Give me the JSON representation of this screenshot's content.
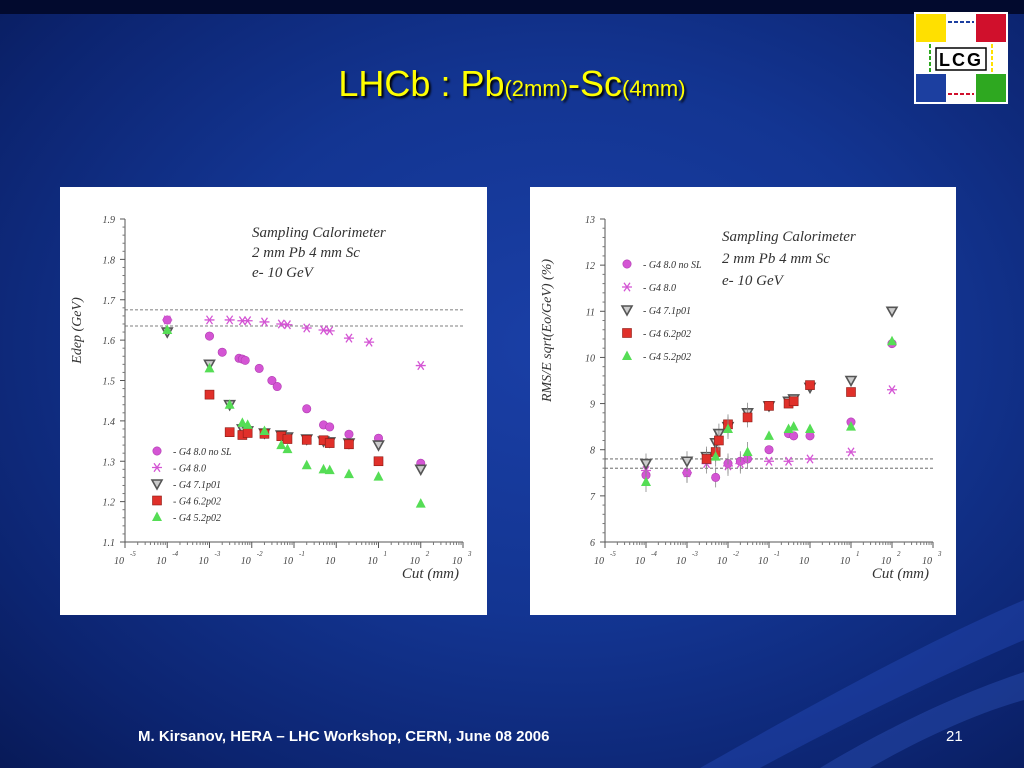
{
  "slide": {
    "title_main_1": "LHCb : Pb",
    "title_sub_1": "(2mm)",
    "title_main_2": "-Sc",
    "title_sub_2": "(4mm)",
    "footer": "M. Kirsanov, HERA – LHC Workshop, CERN, June 08 2006",
    "page_number": "21",
    "logo_text": "LCG",
    "colors": {
      "background": "#133592",
      "title": "#ffff00",
      "logo_yellow": "#ffe000",
      "logo_red": "#d0102c",
      "logo_blue": "#1c3fa0",
      "logo_green": "#2ea820"
    }
  },
  "chart_data": [
    {
      "type": "scatter",
      "title": "",
      "annotation": [
        "Sampling Calorimeter",
        "2 mm Pb 4 mm Sc",
        "e- 10 GeV"
      ],
      "xlabel": "Cut (mm)",
      "ylabel": "Edep (GeV)",
      "xscale": "log",
      "xlim": [
        1e-05,
        1000
      ],
      "ylim": [
        1.1,
        1.9
      ],
      "xticks": [
        -5,
        -4,
        -3,
        -2,
        -1,
        0,
        1,
        2,
        3
      ],
      "yticks": [
        "1.1",
        "1.2",
        "1.3",
        "1.4",
        "1.5",
        "1.6",
        "1.7",
        "1.8",
        "1.9"
      ],
      "reference_lines": [
        1.675,
        1.635
      ],
      "legend_position": "bottom-left",
      "series": [
        {
          "name": "- G4 8.0 no SL",
          "marker": "circle",
          "color": "#d455d4",
          "x": [
            0.0001,
            0.001,
            0.002,
            0.005,
            0.006,
            0.007,
            0.015,
            0.03,
            0.04,
            0.2,
            0.5,
            0.7,
            2,
            10,
            100
          ],
          "y": [
            1.65,
            1.61,
            1.57,
            1.555,
            1.553,
            1.55,
            1.53,
            1.5,
            1.485,
            1.43,
            1.39,
            1.385,
            1.367,
            1.357,
            1.295
          ]
        },
        {
          "name": "- G4 8.0",
          "marker": "star",
          "color": "#d455d4",
          "x": [
            0.0001,
            0.001,
            0.003,
            0.006,
            0.008,
            0.02,
            0.05,
            0.07,
            0.2,
            0.5,
            0.7,
            2,
            6,
            100
          ],
          "y": [
            1.65,
            1.65,
            1.65,
            1.648,
            1.648,
            1.645,
            1.64,
            1.638,
            1.63,
            1.625,
            1.623,
            1.605,
            1.595,
            1.537
          ]
        },
        {
          "name": "- G4 7.1p01",
          "marker": "triangle-down",
          "color": "#555555",
          "x": [
            0.0001,
            0.001,
            0.003,
            0.006,
            0.008,
            0.02,
            0.05,
            0.07,
            0.2,
            0.5,
            0.7,
            2,
            10,
            100
          ],
          "y": [
            1.62,
            1.54,
            1.44,
            1.38,
            1.375,
            1.37,
            1.365,
            1.36,
            1.355,
            1.35,
            1.348,
            1.345,
            1.34,
            1.28
          ]
        },
        {
          "name": "- G4 6.2p02",
          "marker": "square",
          "color": "#e0302a",
          "x": [
            0.001,
            0.003,
            0.006,
            0.008,
            0.02,
            0.05,
            0.07,
            0.2,
            0.5,
            0.7,
            2,
            10
          ],
          "y": [
            1.465,
            1.372,
            1.365,
            1.37,
            1.368,
            1.362,
            1.355,
            1.353,
            1.352,
            1.345,
            1.342,
            1.3
          ]
        },
        {
          "name": "- G4 5.2p02",
          "marker": "triangle-up",
          "color": "#55dd55",
          "x": [
            0.0001,
            0.001,
            0.003,
            0.006,
            0.008,
            0.02,
            0.05,
            0.07,
            0.2,
            0.5,
            0.7,
            2,
            10,
            100
          ],
          "y": [
            1.625,
            1.53,
            1.44,
            1.395,
            1.39,
            1.375,
            1.34,
            1.33,
            1.29,
            1.28,
            1.278,
            1.268,
            1.262,
            1.195
          ]
        }
      ]
    },
    {
      "type": "scatter",
      "title": "",
      "annotation": [
        "Sampling Calorimeter",
        "2 mm Pb 4 mm Sc",
        "e- 10 GeV"
      ],
      "xlabel": "Cut (mm)",
      "ylabel": "RMS/E sqrt(Eo/GeV) (%)",
      "xscale": "log",
      "xlim": [
        1e-05,
        1000
      ],
      "ylim": [
        6,
        13
      ],
      "xticks": [
        -5,
        -4,
        -3,
        -2,
        -1,
        0,
        1,
        2,
        3
      ],
      "yticks": [
        "6",
        "7",
        "8",
        "9",
        "10",
        "11",
        "12",
        "13"
      ],
      "reference_lines": [
        7.8,
        7.6
      ],
      "legend_position": "top-left",
      "series": [
        {
          "name": "- G4 8.0 no SL",
          "marker": "circle",
          "color": "#d455d4",
          "x": [
            0.0001,
            0.001,
            0.003,
            0.005,
            0.01,
            0.02,
            0.03,
            0.1,
            0.3,
            0.4,
            1,
            10,
            100
          ],
          "y": [
            7.45,
            7.5,
            7.8,
            7.4,
            7.7,
            7.75,
            7.8,
            8.0,
            8.35,
            8.3,
            8.3,
            8.6,
            10.3
          ]
        },
        {
          "name": "- G4 8.0",
          "marker": "star",
          "color": "#d455d4",
          "x": [
            0.0001,
            0.001,
            0.003,
            0.01,
            0.02,
            0.1,
            0.3,
            1,
            10,
            100
          ],
          "y": [
            7.55,
            7.5,
            7.7,
            7.65,
            7.7,
            7.75,
            7.75,
            7.8,
            7.95,
            9.3
          ]
        },
        {
          "name": "- G4 7.1p01",
          "marker": "triangle-down",
          "color": "#555555",
          "x": [
            0.0001,
            0.001,
            0.003,
            0.005,
            0.006,
            0.01,
            0.03,
            0.1,
            0.3,
            0.4,
            1,
            10,
            100
          ],
          "y": [
            7.7,
            7.75,
            7.85,
            8.15,
            8.35,
            8.5,
            8.8,
            8.95,
            9.05,
            9.1,
            9.35,
            9.5,
            11.0
          ]
        },
        {
          "name": "- G4 6.2p02",
          "marker": "square",
          "color": "#e0302a",
          "x": [
            0.003,
            0.005,
            0.006,
            0.01,
            0.03,
            0.1,
            0.3,
            0.4,
            1,
            10
          ],
          "y": [
            7.8,
            7.95,
            8.2,
            8.55,
            8.7,
            8.95,
            9.0,
            9.05,
            9.4,
            9.25
          ]
        },
        {
          "name": "- G4 5.2p02",
          "marker": "triangle-up",
          "color": "#55dd55",
          "x": [
            0.0001,
            0.005,
            0.01,
            0.03,
            0.1,
            0.3,
            0.4,
            1,
            10,
            100
          ],
          "y": [
            7.3,
            7.85,
            8.45,
            7.95,
            8.3,
            8.45,
            8.5,
            8.45,
            8.5,
            10.35
          ]
        }
      ]
    }
  ]
}
